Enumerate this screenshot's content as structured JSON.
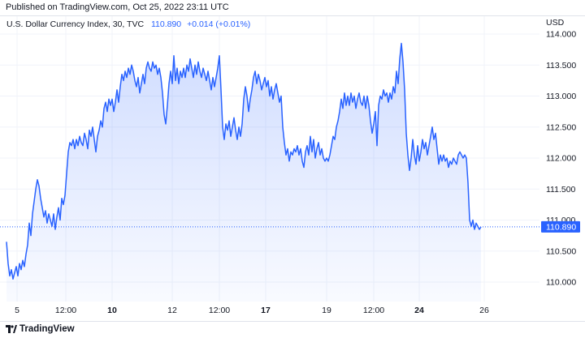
{
  "header": {
    "published": "Published on TradingView.com, Oct 25, 2022 23:11 UTC"
  },
  "legend": {
    "symbol": "U.S. Dollar Currency Index, 30, TVC",
    "value": "110.890",
    "change": "+0.014 (+0.01%)"
  },
  "footer": {
    "brand": "TradingView"
  },
  "colors": {
    "line": "#2962ff",
    "price_label_bg": "#2962ff",
    "grid": "#f0f3fa"
  },
  "chart_data": {
    "type": "area",
    "title": "U.S. Dollar Currency Index, 30, TVC",
    "currency": "USD",
    "last_price": 110.89,
    "last_price_label": "110.890",
    "ylim": [
      109.8,
      114.3
    ],
    "y_ticks": [
      110.0,
      110.5,
      111.0,
      111.5,
      112.0,
      112.5,
      113.0,
      113.5,
      114.0
    ],
    "y_tick_labels": [
      "110.000",
      "110.500",
      "111.000",
      "111.500",
      "112.000",
      "112.500",
      "113.000",
      "113.500",
      "114.000"
    ],
    "xlim": [
      0,
      720
    ],
    "x_ticks": [
      {
        "x": 21,
        "label": "5",
        "bold": false
      },
      {
        "x": 81,
        "label": "12:00",
        "bold": false
      },
      {
        "x": 138,
        "label": "10",
        "bold": true
      },
      {
        "x": 212,
        "label": "12",
        "bold": false
      },
      {
        "x": 270,
        "label": "12:00",
        "bold": false
      },
      {
        "x": 327,
        "label": "17",
        "bold": true
      },
      {
        "x": 402,
        "label": "19",
        "bold": false
      },
      {
        "x": 460,
        "label": "12:00",
        "bold": false
      },
      {
        "x": 516,
        "label": "24",
        "bold": true
      },
      {
        "x": 596,
        "label": "26",
        "bold": false
      }
    ],
    "series": [
      {
        "points": [
          [
            8,
            110.65
          ],
          [
            10,
            110.3
          ],
          [
            12,
            110.1
          ],
          [
            14,
            110.2
          ],
          [
            16,
            110.05
          ],
          [
            18,
            110.15
          ],
          [
            20,
            110.25
          ],
          [
            22,
            110.1
          ],
          [
            24,
            110.3
          ],
          [
            26,
            110.2
          ],
          [
            28,
            110.35
          ],
          [
            30,
            110.25
          ],
          [
            32,
            110.45
          ],
          [
            34,
            110.6
          ],
          [
            36,
            110.95
          ],
          [
            38,
            110.75
          ],
          [
            40,
            111.1
          ],
          [
            42,
            111.3
          ],
          [
            44,
            111.5
          ],
          [
            46,
            111.65
          ],
          [
            48,
            111.55
          ],
          [
            50,
            111.35
          ],
          [
            52,
            111.2
          ],
          [
            54,
            111.05
          ],
          [
            56,
            111.15
          ],
          [
            58,
            110.95
          ],
          [
            60,
            111.1
          ],
          [
            62,
            111.0
          ],
          [
            64,
            110.9
          ],
          [
            66,
            111.1
          ],
          [
            68,
            110.85
          ],
          [
            70,
            111.05
          ],
          [
            72,
            111.2
          ],
          [
            74,
            111.0
          ],
          [
            76,
            111.35
          ],
          [
            78,
            111.25
          ],
          [
            80,
            111.4
          ],
          [
            82,
            111.75
          ],
          [
            84,
            112.1
          ],
          [
            86,
            112.25
          ],
          [
            88,
            112.2
          ],
          [
            90,
            112.3
          ],
          [
            92,
            112.15
          ],
          [
            94,
            112.3
          ],
          [
            96,
            112.2
          ],
          [
            98,
            112.35
          ],
          [
            100,
            112.25
          ],
          [
            102,
            112.2
          ],
          [
            104,
            112.4
          ],
          [
            106,
            112.3
          ],
          [
            108,
            112.15
          ],
          [
            110,
            112.45
          ],
          [
            112,
            112.35
          ],
          [
            114,
            112.5
          ],
          [
            116,
            112.3
          ],
          [
            118,
            112.1
          ],
          [
            120,
            112.35
          ],
          [
            122,
            112.45
          ],
          [
            124,
            112.6
          ],
          [
            126,
            112.5
          ],
          [
            128,
            112.8
          ],
          [
            130,
            112.9
          ],
          [
            132,
            112.75
          ],
          [
            134,
            112.95
          ],
          [
            136,
            112.85
          ],
          [
            138,
            112.95
          ],
          [
            140,
            112.75
          ],
          [
            142,
            112.9
          ],
          [
            144,
            113.1
          ],
          [
            146,
            112.9
          ],
          [
            148,
            113.15
          ],
          [
            150,
            113.35
          ],
          [
            152,
            113.25
          ],
          [
            154,
            113.4
          ],
          [
            156,
            113.3
          ],
          [
            158,
            113.45
          ],
          [
            160,
            113.35
          ],
          [
            162,
            113.5
          ],
          [
            164,
            113.4
          ],
          [
            166,
            113.25
          ],
          [
            168,
            113.15
          ],
          [
            170,
            113.3
          ],
          [
            172,
            113.05
          ],
          [
            174,
            113.2
          ],
          [
            176,
            113.35
          ],
          [
            178,
            113.2
          ],
          [
            180,
            113.45
          ],
          [
            182,
            113.55
          ],
          [
            184,
            113.45
          ],
          [
            186,
            113.4
          ],
          [
            188,
            113.55
          ],
          [
            190,
            113.45
          ],
          [
            192,
            113.5
          ],
          [
            194,
            113.35
          ],
          [
            196,
            113.45
          ],
          [
            198,
            113.3
          ],
          [
            200,
            113.05
          ],
          [
            202,
            112.7
          ],
          [
            204,
            112.55
          ],
          [
            206,
            112.85
          ],
          [
            208,
            113.2
          ],
          [
            210,
            113.4
          ],
          [
            212,
            113.2
          ],
          [
            214,
            113.65
          ],
          [
            216,
            113.25
          ],
          [
            218,
            113.45
          ],
          [
            220,
            113.2
          ],
          [
            222,
            113.4
          ],
          [
            224,
            113.3
          ],
          [
            226,
            113.45
          ],
          [
            228,
            113.3
          ],
          [
            230,
            113.5
          ],
          [
            232,
            113.4
          ],
          [
            234,
            113.6
          ],
          [
            236,
            113.45
          ],
          [
            238,
            113.3
          ],
          [
            240,
            113.5
          ],
          [
            242,
            113.35
          ],
          [
            244,
            113.55
          ],
          [
            246,
            113.4
          ],
          [
            248,
            113.3
          ],
          [
            250,
            113.45
          ],
          [
            252,
            113.35
          ],
          [
            254,
            113.25
          ],
          [
            256,
            113.4
          ],
          [
            258,
            113.25
          ],
          [
            260,
            113.1
          ],
          [
            262,
            113.3
          ],
          [
            264,
            113.15
          ],
          [
            266,
            113.3
          ],
          [
            268,
            113.45
          ],
          [
            270,
            113.65
          ],
          [
            272,
            113.1
          ],
          [
            274,
            112.5
          ],
          [
            276,
            112.3
          ],
          [
            278,
            112.55
          ],
          [
            280,
            112.45
          ],
          [
            282,
            112.6
          ],
          [
            284,
            112.35
          ],
          [
            286,
            112.5
          ],
          [
            288,
            112.65
          ],
          [
            290,
            112.45
          ],
          [
            292,
            112.3
          ],
          [
            294,
            112.5
          ],
          [
            296,
            112.35
          ],
          [
            298,
            112.55
          ],
          [
            300,
            112.95
          ],
          [
            302,
            113.15
          ],
          [
            304,
            113.0
          ],
          [
            306,
            112.75
          ],
          [
            308,
            112.95
          ],
          [
            310,
            113.1
          ],
          [
            312,
            113.3
          ],
          [
            314,
            113.4
          ],
          [
            316,
            113.2
          ],
          [
            318,
            113.35
          ],
          [
            320,
            113.25
          ],
          [
            322,
            113.1
          ],
          [
            324,
            113.2
          ],
          [
            326,
            113.3
          ],
          [
            328,
            113.15
          ],
          [
            330,
            113.25
          ],
          [
            332,
            113.0
          ],
          [
            334,
            113.15
          ],
          [
            336,
            112.95
          ],
          [
            338,
            113.1
          ],
          [
            340,
            113.2
          ],
          [
            342,
            113.05
          ],
          [
            344,
            112.9
          ],
          [
            346,
            113.0
          ],
          [
            348,
            112.5
          ],
          [
            350,
            112.25
          ],
          [
            352,
            112.05
          ],
          [
            354,
            112.15
          ],
          [
            356,
            111.95
          ],
          [
            358,
            112.1
          ],
          [
            360,
            112.05
          ],
          [
            362,
            112.15
          ],
          [
            364,
            112.1
          ],
          [
            366,
            112.2
          ],
          [
            368,
            112.05
          ],
          [
            370,
            112.15
          ],
          [
            372,
            111.95
          ],
          [
            374,
            111.85
          ],
          [
            376,
            112.1
          ],
          [
            378,
            112.2
          ],
          [
            380,
            112.05
          ],
          [
            382,
            112.35
          ],
          [
            384,
            112.1
          ],
          [
            386,
            112.3
          ],
          [
            388,
            112.0
          ],
          [
            390,
            112.15
          ],
          [
            392,
            112.25
          ],
          [
            394,
            112.05
          ],
          [
            396,
            112.15
          ],
          [
            398,
            112.0
          ],
          [
            400,
            111.95
          ],
          [
            402,
            112.0
          ],
          [
            404,
            111.95
          ],
          [
            406,
            112.05
          ],
          [
            408,
            112.2
          ],
          [
            410,
            112.35
          ],
          [
            412,
            112.3
          ],
          [
            414,
            112.5
          ],
          [
            416,
            112.6
          ],
          [
            418,
            112.75
          ],
          [
            420,
            112.95
          ],
          [
            422,
            112.8
          ],
          [
            424,
            113.05
          ],
          [
            426,
            112.85
          ],
          [
            428,
            113.0
          ],
          [
            430,
            112.85
          ],
          [
            432,
            113.05
          ],
          [
            434,
            112.9
          ],
          [
            436,
            113.0
          ],
          [
            438,
            112.8
          ],
          [
            440,
            112.95
          ],
          [
            442,
            113.05
          ],
          [
            444,
            112.9
          ],
          [
            446,
            112.85
          ],
          [
            448,
            113.0
          ],
          [
            450,
            112.8
          ],
          [
            452,
            113.0
          ],
          [
            454,
            112.85
          ],
          [
            456,
            112.6
          ],
          [
            458,
            112.4
          ],
          [
            460,
            112.55
          ],
          [
            462,
            112.75
          ],
          [
            464,
            112.2
          ],
          [
            466,
            112.85
          ],
          [
            468,
            113.0
          ],
          [
            470,
            112.95
          ],
          [
            472,
            113.1
          ],
          [
            474,
            113.0
          ],
          [
            476,
            113.05
          ],
          [
            478,
            112.9
          ],
          [
            480,
            113.05
          ],
          [
            482,
            112.95
          ],
          [
            484,
            113.15
          ],
          [
            486,
            113.05
          ],
          [
            488,
            113.4
          ],
          [
            490,
            113.2
          ],
          [
            492,
            113.6
          ],
          [
            494,
            113.85
          ],
          [
            496,
            113.55
          ],
          [
            498,
            113.1
          ],
          [
            500,
            112.4
          ],
          [
            502,
            112.05
          ],
          [
            504,
            111.8
          ],
          [
            506,
            112.0
          ],
          [
            508,
            112.3
          ],
          [
            510,
            112.05
          ],
          [
            512,
            111.9
          ],
          [
            514,
            112.2
          ],
          [
            516,
            111.95
          ],
          [
            518,
            112.1
          ],
          [
            520,
            112.3
          ],
          [
            522,
            112.15
          ],
          [
            524,
            112.25
          ],
          [
            526,
            112.05
          ],
          [
            528,
            112.2
          ],
          [
            530,
            112.35
          ],
          [
            532,
            112.5
          ],
          [
            534,
            112.3
          ],
          [
            536,
            112.4
          ],
          [
            538,
            112.15
          ],
          [
            540,
            111.9
          ],
          [
            542,
            112.05
          ],
          [
            544,
            111.95
          ],
          [
            546,
            112.05
          ],
          [
            548,
            111.95
          ],
          [
            550,
            112.0
          ],
          [
            552,
            111.85
          ],
          [
            554,
            111.95
          ],
          [
            556,
            111.9
          ],
          [
            558,
            112.0
          ],
          [
            560,
            111.95
          ],
          [
            562,
            111.9
          ],
          [
            564,
            112.05
          ],
          [
            566,
            112.1
          ],
          [
            568,
            112.05
          ],
          [
            570,
            112.0
          ],
          [
            572,
            112.05
          ],
          [
            574,
            112.0
          ],
          [
            576,
            111.6
          ],
          [
            578,
            111.0
          ],
          [
            580,
            110.9
          ],
          [
            582,
            111.0
          ],
          [
            584,
            110.85
          ],
          [
            586,
            110.95
          ],
          [
            588,
            110.9
          ],
          [
            590,
            110.85
          ],
          [
            592,
            110.89
          ]
        ]
      }
    ]
  }
}
